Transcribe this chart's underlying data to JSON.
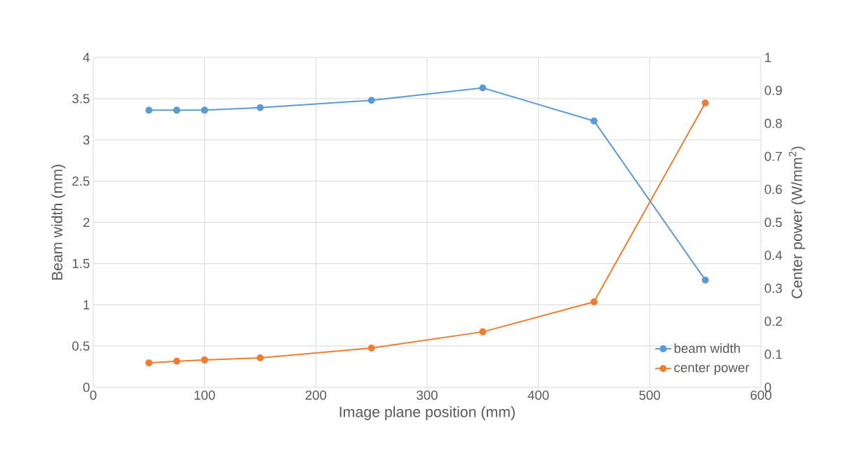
{
  "chart_data": {
    "type": "line",
    "xlabel": "Image plane position (mm)",
    "ylabel": "Beam width (mm)",
    "y2label": "Center power (W/mm$^{2}$)",
    "x": [
      50,
      75,
      100,
      150,
      250,
      350,
      450,
      550
    ],
    "series": [
      {
        "name": "beam width",
        "color": "#5b9bd5",
        "values": [
          3.36,
          3.36,
          3.36,
          3.39,
          3.48,
          3.63,
          3.23,
          1.3
        ]
      },
      {
        "name": "center power",
        "color": "#ed7d31",
        "axis": "y2",
        "values": [
          0.074,
          0.079,
          0.083,
          0.089,
          0.119,
          0.168,
          0.259,
          0.862
        ]
      }
    ],
    "xlim": [
      0,
      600
    ],
    "xticks": [
      0,
      100,
      200,
      300,
      400,
      500,
      600
    ],
    "ylim": [
      0,
      4
    ],
    "yticks": [
      0,
      0.5,
      1,
      1.5,
      2,
      2.5,
      3,
      3.5,
      4
    ],
    "y2lim": [
      0,
      1
    ],
    "y2ticks": [
      0,
      0.1,
      0.2,
      0.3,
      0.4,
      0.5,
      0.6,
      0.7,
      0.8,
      0.9,
      1
    ],
    "grid": true,
    "legend": "bottom right",
    "marker": "circle",
    "line_style": "solid"
  }
}
